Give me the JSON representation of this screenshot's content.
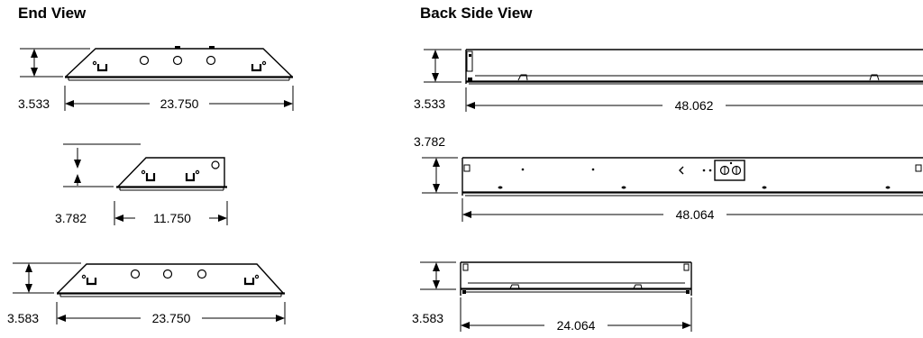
{
  "headings": {
    "end_view": "End View",
    "back_side_view": "Back Side View"
  },
  "dimensions": {
    "end_top_height": "3.533",
    "end_top_width": "23.750",
    "end_mid_height": "3.782",
    "end_mid_width": "11.750",
    "end_bot_height": "3.583",
    "end_bot_width": "23.750",
    "back_top_height": "3.533",
    "back_top_width": "48.062",
    "back_mid_height": "3.782",
    "back_mid_width": "48.064",
    "back_bot_height": "3.583",
    "back_bot_width": "24.064"
  }
}
